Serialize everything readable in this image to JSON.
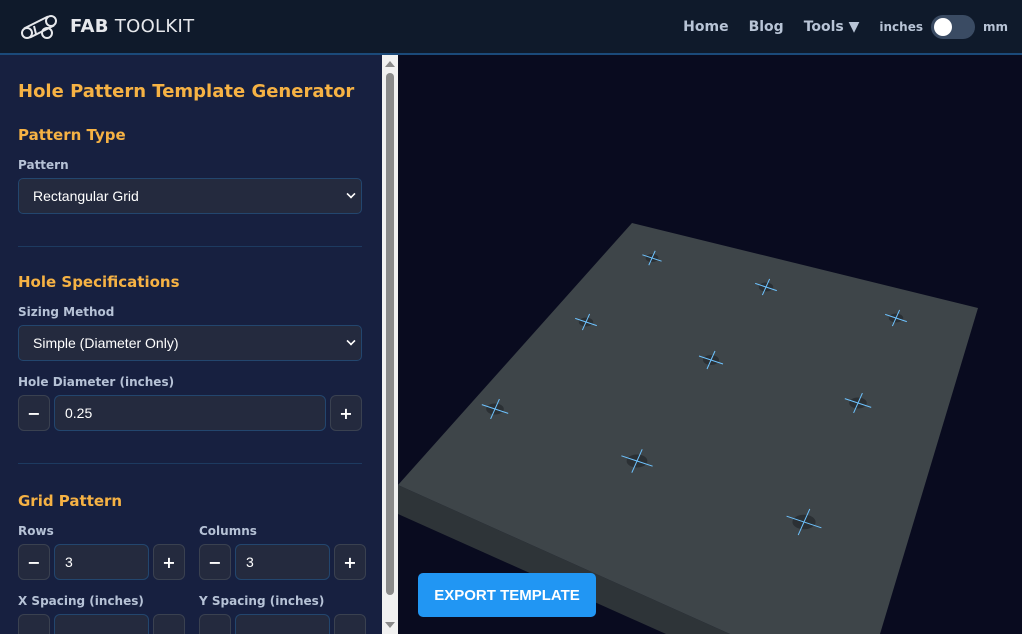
{
  "header": {
    "brand_bold": "FAB",
    "brand_light": "TOOLKIT",
    "nav": {
      "home": "Home",
      "blog": "Blog",
      "tools": "Tools ▼"
    },
    "unit_left": "inches",
    "unit_right": "mm",
    "unit_toggle_mm": false
  },
  "sidebar": {
    "title": "Hole Pattern Template Generator",
    "pattern_section": {
      "heading": "Pattern Type",
      "pattern_label": "Pattern",
      "pattern_value": "Rectangular Grid"
    },
    "hole_section": {
      "heading": "Hole Specifications",
      "sizing_label": "Sizing Method",
      "sizing_value": "Simple (Diameter Only)",
      "diameter_label": "Hole Diameter (inches)",
      "diameter_value": "0.25"
    },
    "grid_section": {
      "heading": "Grid Pattern",
      "rows_label": "Rows",
      "rows_value": "3",
      "columns_label": "Columns",
      "columns_value": "3",
      "x_spacing_label": "X Spacing (inches)",
      "y_spacing_label": "Y Spacing (inches)"
    },
    "minus": "−",
    "plus": "+"
  },
  "viewport": {
    "export_label": "EXPORT TEMPLATE",
    "plate_color": "#3e4549",
    "marker_color": "#6ec3ff",
    "accent": "#2196f3",
    "heading_color": "#f6b244"
  }
}
